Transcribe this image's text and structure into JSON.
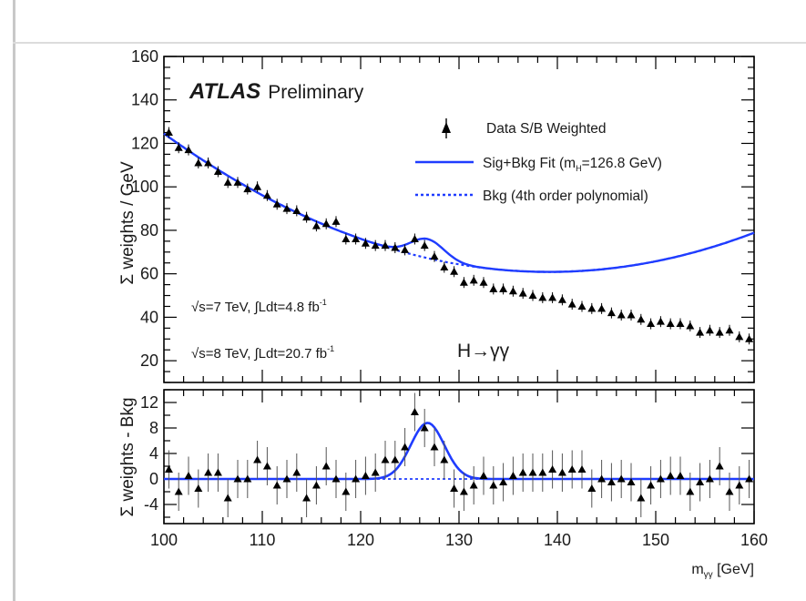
{
  "chart_data": [
    {
      "panel": "main",
      "type": "scatter",
      "ylabel": "Σ weights / GeV",
      "ylim": [
        10,
        160
      ],
      "xlim": [
        100,
        160
      ],
      "yticks": [
        20,
        40,
        60,
        80,
        100,
        120,
        140,
        160
      ],
      "logo": "ATLAS",
      "logo_suffix": "Preliminary",
      "channel": "H→γγ",
      "notes": [
        {
          "prefix": "√s=7 TeV, ∫Ldt=4.8 fb",
          "sup": "-1"
        },
        {
          "prefix": "√s=8 TeV, ∫Ldt=20.7 fb",
          "sup": "-1"
        }
      ],
      "legend": [
        {
          "label": "Data S/B Weighted",
          "style": "marker"
        },
        {
          "label_pre": "Sig+Bkg Fit (m",
          "label_sub": "H",
          "label_post": "=126.8 GeV)",
          "style": "solid"
        },
        {
          "label": "Bkg (4th order polynomial)",
          "style": "dashed"
        }
      ],
      "legend_position": "top-right",
      "colors": {
        "fit": "#1f3cff",
        "data": "#000000"
      },
      "fit_mass": 126.8,
      "signal_width": 1.7,
      "signal_peak": 8.8,
      "series": [
        {
          "name": "Data S/B Weighted",
          "x": [
            100.5,
            101.5,
            102.5,
            103.5,
            104.5,
            105.5,
            106.5,
            107.5,
            108.5,
            109.5,
            110.5,
            111.5,
            112.5,
            113.5,
            114.5,
            115.5,
            116.5,
            117.5,
            118.5,
            119.5,
            120.5,
            121.5,
            122.5,
            123.5,
            124.5,
            125.5,
            126.5,
            127.5,
            128.5,
            129.5,
            130.5,
            131.5,
            132.5,
            133.5,
            134.5,
            135.5,
            136.5,
            137.5,
            138.5,
            139.5,
            140.5,
            141.5,
            142.5,
            143.5,
            144.5,
            145.5,
            146.5,
            147.5,
            148.5,
            149.5,
            150.5,
            151.5,
            152.5,
            153.5,
            154.5,
            155.5,
            156.5,
            157.5,
            158.5,
            159.5
          ],
          "y": [
            125,
            118,
            117,
            111,
            111,
            107,
            102,
            102,
            99,
            100,
            96,
            92,
            90,
            89,
            86,
            82,
            83,
            84,
            76,
            76,
            74,
            73,
            73,
            72,
            71,
            76,
            73,
            68,
            63,
            61,
            56,
            57,
            56,
            53,
            53,
            52,
            51,
            50,
            49,
            49,
            48,
            46,
            45,
            44,
            44,
            42,
            41,
            41,
            39,
            37,
            38,
            37,
            37,
            36,
            33,
            34,
            33,
            34,
            31,
            30
          ]
        },
        {
          "name": "Sig+Bkg Fit (mH=126.8 GeV)",
          "b0": 124.5,
          "b1": -3.25,
          "b2": 0.0415
        },
        {
          "name": "Bkg (4th order polynomial)",
          "b0": 124.5,
          "b1": -3.25,
          "b2": 0.0415
        }
      ]
    },
    {
      "panel": "residual",
      "type": "scatter",
      "ylabel": "Σ weights - Bkg",
      "xlabel_pre": "m",
      "xlabel_sub": "γγ",
      "xlabel_post": " [GeV]",
      "ylim": [
        -7,
        14
      ],
      "xlim": [
        100,
        160
      ],
      "yticks": [
        -4,
        0,
        4,
        8,
        12
      ],
      "xticks": [
        100,
        110,
        120,
        130,
        140,
        150,
        160
      ],
      "series": [
        {
          "name": "Data S/B Weighted - Bkg",
          "x": [
            100.5,
            101.5,
            102.5,
            103.5,
            104.5,
            105.5,
            106.5,
            107.5,
            108.5,
            109.5,
            110.5,
            111.5,
            112.5,
            113.5,
            114.5,
            115.5,
            116.5,
            117.5,
            118.5,
            119.5,
            120.5,
            121.5,
            122.5,
            123.5,
            124.5,
            125.5,
            126.5,
            127.5,
            128.5,
            129.5,
            130.5,
            131.5,
            132.5,
            133.5,
            134.5,
            135.5,
            136.5,
            137.5,
            138.5,
            139.5,
            140.5,
            141.5,
            142.5,
            143.5,
            144.5,
            145.5,
            146.5,
            147.5,
            148.5,
            149.5,
            150.5,
            151.5,
            152.5,
            153.5,
            154.5,
            155.5,
            156.5,
            157.5,
            158.5,
            159.5
          ],
          "y": [
            1.5,
            -2,
            0.5,
            -1.5,
            1,
            1,
            -3,
            0,
            0,
            3,
            2,
            -1,
            0,
            1,
            -3,
            -1,
            2,
            0,
            -2,
            0,
            0.5,
            1,
            3,
            3,
            5,
            10.5,
            8,
            5,
            3,
            -1.5,
            -2,
            -1,
            0.5,
            -1,
            -0.5,
            0.5,
            1,
            1,
            1,
            1.5,
            1,
            1.5,
            1.5,
            -1.5,
            0,
            -0.5,
            0,
            -0.5,
            -3,
            -1,
            0,
            0.5,
            0.5,
            -2,
            -0.5,
            0,
            2,
            -2,
            -1,
            0
          ],
          "err": [
            3,
            3,
            3,
            3,
            3,
            3,
            3,
            3,
            3,
            3,
            3,
            3,
            3,
            3,
            3,
            3,
            3,
            3,
            3,
            3,
            3,
            3,
            3,
            3,
            3,
            3,
            3,
            3,
            3,
            3,
            3,
            3,
            3,
            3,
            3,
            3,
            3,
            3,
            3,
            3,
            3,
            3,
            3,
            3,
            3,
            3,
            3,
            3,
            3,
            3,
            3,
            3,
            3,
            3,
            3,
            3,
            3,
            3,
            3,
            3
          ]
        }
      ]
    }
  ]
}
